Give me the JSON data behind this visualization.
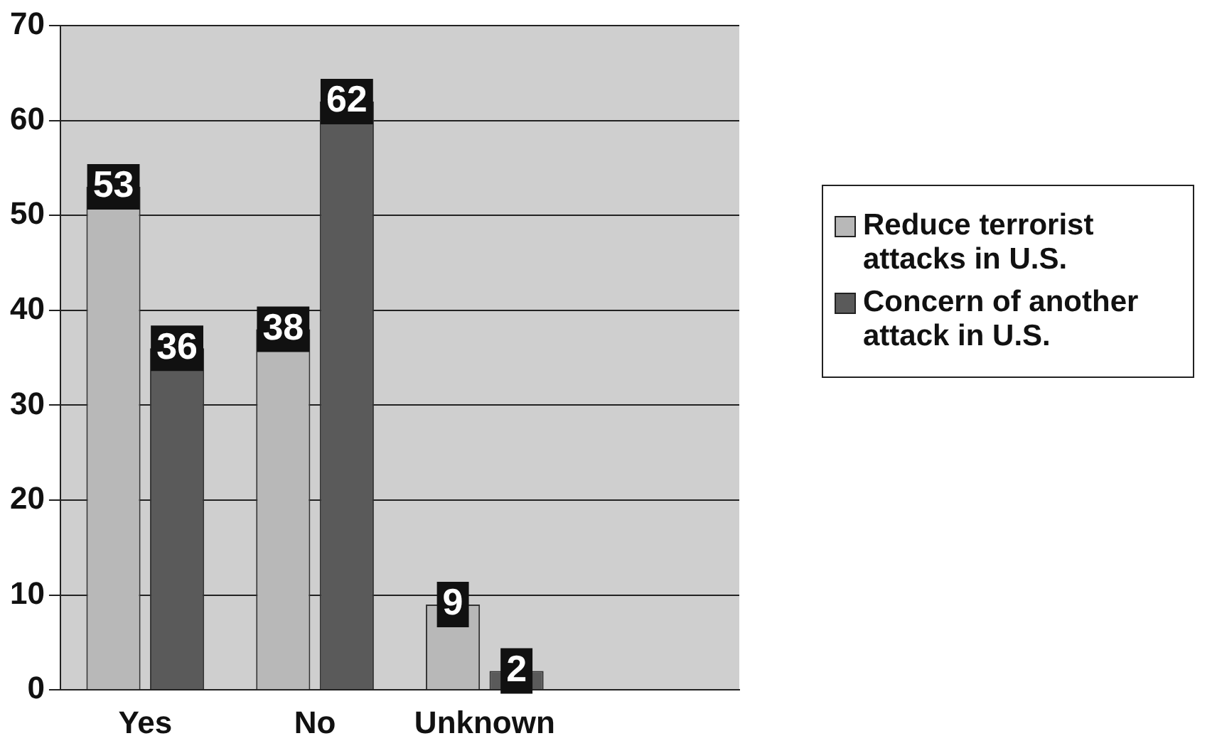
{
  "chart_data": {
    "type": "bar",
    "categories": [
      "Yes",
      "No",
      "Unknown",
      null
    ],
    "series": [
      {
        "name": "Reduce terrorist attacks in U.S.",
        "color": "#b8b8b8",
        "values": [
          53,
          38,
          9,
          null
        ]
      },
      {
        "name": "Concern of another attack in U.S.",
        "color": "#5a5a5a",
        "values": [
          36,
          62,
          2,
          null
        ]
      }
    ],
    "ylim": [
      0,
      70
    ],
    "yticks": [
      0,
      10,
      20,
      30,
      40,
      50,
      60,
      70
    ],
    "grid": "y",
    "legend": "right",
    "data_labels": true
  }
}
